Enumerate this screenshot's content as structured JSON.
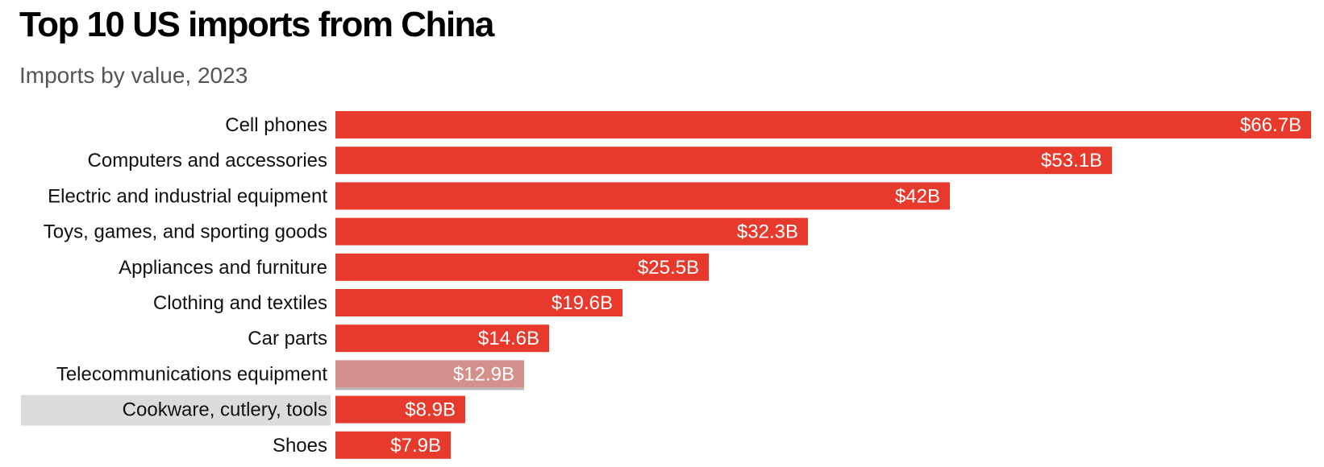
{
  "header": {
    "title": "Top 10 US imports from China",
    "subtitle": "Imports by value, 2023"
  },
  "colors": {
    "bar": "#e8392d",
    "bar_hovered": "#d4908b",
    "row_highlight": "#dcdcdc"
  },
  "chart_data": {
    "type": "bar",
    "orientation": "horizontal",
    "title": "Top 10 US imports from China",
    "subtitle": "Imports by value, 2023",
    "categories": [
      "Cell phones",
      "Computers and accessories",
      "Electric and industrial equipment",
      "Toys, games, and sporting goods",
      "Appliances and furniture",
      "Clothing and textiles",
      "Car parts",
      "Telecommunications equipment",
      "Cookware, cutlery, tools",
      "Shoes"
    ],
    "values": [
      66.7,
      53.1,
      42,
      32.3,
      25.5,
      19.6,
      14.6,
      12.9,
      8.9,
      7.9
    ],
    "value_labels": [
      "$66.7B",
      "$53.1B",
      "$42B",
      "$32.3B",
      "$25.5B",
      "$19.6B",
      "$14.6B",
      "$12.9B",
      "$8.9B",
      "$7.9B"
    ],
    "unit": "billion USD",
    "xlim": [
      0,
      66.7
    ],
    "grid": false,
    "legend": "none",
    "hovered_category": "Telecommunications equipment",
    "highlighted_category": "Cookware, cutlery, tools"
  }
}
